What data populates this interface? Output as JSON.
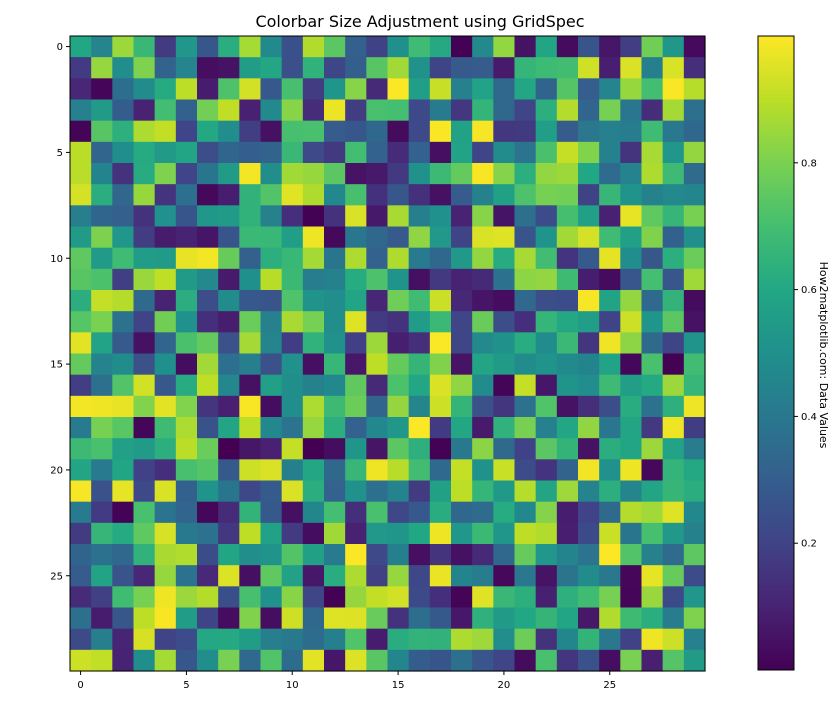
{
  "chart_data": {
    "type": "heatmap",
    "title": "Colorbar Size Adjustment using GridSpec",
    "rows": 30,
    "cols": 30,
    "x_ticks": [
      0,
      5,
      10,
      15,
      20,
      25
    ],
    "y_ticks": [
      0,
      5,
      10,
      15,
      20,
      25
    ],
    "xlim": [
      -0.5,
      29.5
    ],
    "ylim": [
      29.5,
      -0.5
    ],
    "colormap": "viridis",
    "value_range": [
      0,
      1
    ],
    "seed": 42,
    "colorbar": {
      "label": "How2matplotlib.com: Data Values",
      "ticks": [
        0.2,
        0.4,
        0.6,
        0.8
      ],
      "range": [
        0.0,
        1.0
      ]
    }
  }
}
